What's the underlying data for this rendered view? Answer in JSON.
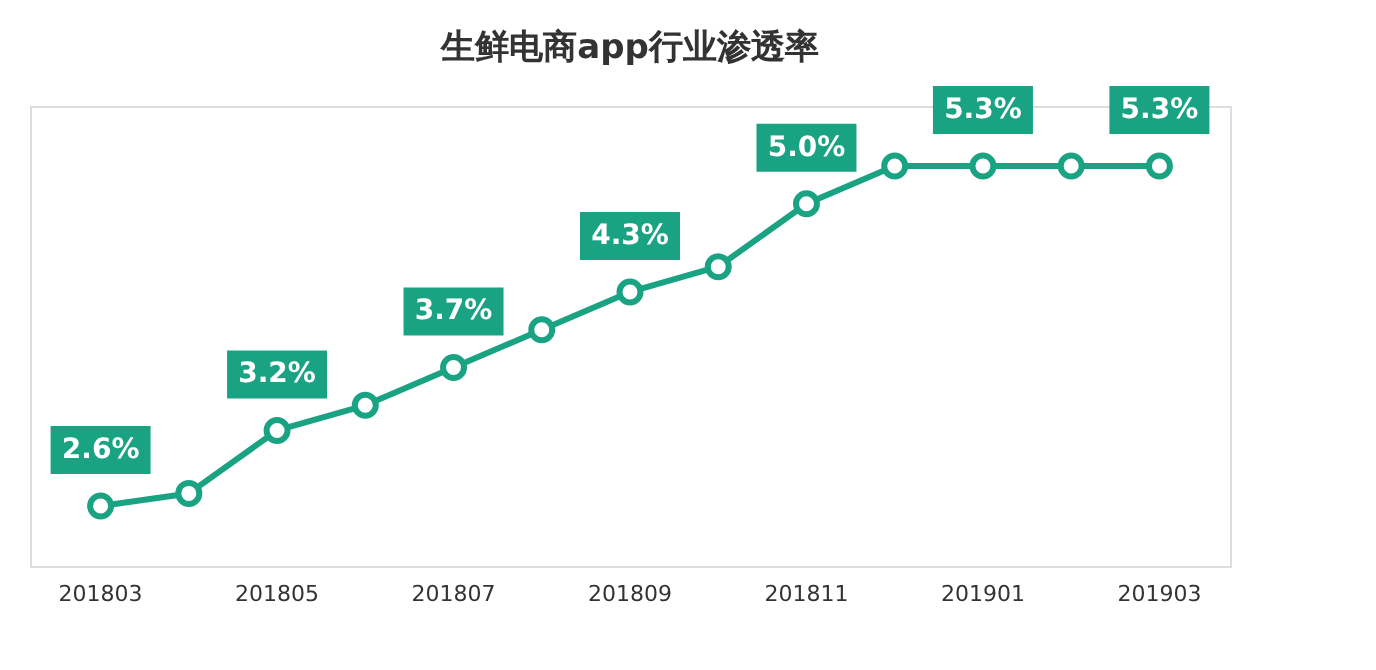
{
  "chart_data": {
    "type": "line",
    "title": "生鲜电商app行业渗透率",
    "categories": [
      "201803",
      null,
      "201805",
      null,
      "201807",
      null,
      "201809",
      null,
      "201811",
      null,
      "201901",
      null,
      "201903"
    ],
    "series": [
      {
        "color": "#1aa383",
        "values": [
          2.6,
          2.7,
          3.2,
          3.4,
          3.7,
          4.0,
          4.3,
          4.5,
          5.0,
          5.3,
          5.3,
          5.3,
          5.3
        ],
        "value_labels": [
          "2.6%",
          null,
          "3.2%",
          null,
          "3.7%",
          null,
          "4.3%",
          null,
          "5.0%",
          null,
          "5.3%",
          null,
          "5.3%"
        ]
      }
    ],
    "marker": "circle",
    "line_style": "solid"
  }
}
